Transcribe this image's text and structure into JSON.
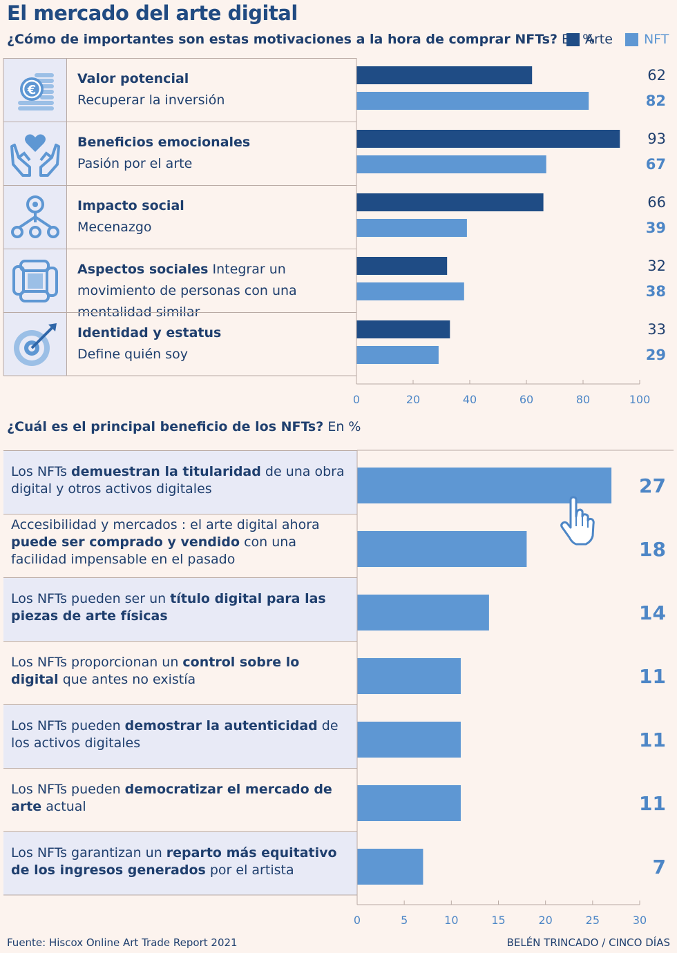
{
  "title": "El mercado del arte digital",
  "chart1_subtitle_bold": "¿Cómo de importantes son estas motivaciones a la hora de comprar NFTs?",
  "chart1_subtitle_unit": "En %",
  "chart2_subtitle_bold": "¿Cuál es el principal beneficio de los NFTs?",
  "chart2_subtitle_unit": "En %",
  "legend": [
    {
      "label": "Arte",
      "color": "#1f4c85"
    },
    {
      "label": "NFT",
      "color": "#5e97d3"
    }
  ],
  "icons": [
    "euro-coins-icon",
    "heart-hands-icon",
    "network-icon",
    "joined-hands-icon",
    "target-arrow-icon"
  ],
  "chart_data": [
    {
      "type": "bar",
      "orientation": "horizontal",
      "title": "¿Cómo de importantes son estas motivaciones a la hora de comprar NFTs? En %",
      "categories": [
        {
          "bold": "Valor potencial",
          "text": "Recuperar la inversión"
        },
        {
          "bold": "Beneficios emocionales",
          "text": "Pasión por el arte"
        },
        {
          "bold": "Impacto social",
          "text": "Mecenazgo"
        },
        {
          "bold": "Aspectos sociales",
          "text": "Integrar un movimiento de personas con una mentalidad similar"
        },
        {
          "bold": "Identidad y estatus",
          "text": "Define quién soy"
        }
      ],
      "series": [
        {
          "name": "Arte",
          "values": [
            62,
            93,
            66,
            32,
            33
          ]
        },
        {
          "name": "NFT",
          "values": [
            82,
            67,
            39,
            38,
            29
          ]
        }
      ],
      "xlim": [
        0,
        100
      ],
      "xticks": [
        0,
        20,
        40,
        60,
        80,
        100
      ],
      "legend_position": "top-right",
      "grid": false
    },
    {
      "type": "bar",
      "orientation": "horizontal",
      "title": "¿Cuál es el principal beneficio de los NFTs? En %",
      "categories": [
        [
          {
            "t": "Los NFTs ",
            "b": false
          },
          {
            "t": "demuestran la titularidad",
            "b": true
          },
          {
            "t": " de una obra digital y otros activos digitales",
            "b": false
          }
        ],
        [
          {
            "t": "Accesibilidad y mercados : el arte digital ahora ",
            "b": false
          },
          {
            "t": "puede ser comprado y vendido",
            "b": true
          },
          {
            "t": " con una facilidad impensable en el pasado",
            "b": false
          }
        ],
        [
          {
            "t": "Los NFTs pueden ser un ",
            "b": false
          },
          {
            "t": "título digital para las piezas de arte físicas",
            "b": true
          }
        ],
        [
          {
            "t": "Los NFTs proporcionan un ",
            "b": false
          },
          {
            "t": "control sobre lo digital",
            "b": true
          },
          {
            "t": " que antes no existía",
            "b": false
          }
        ],
        [
          {
            "t": "Los NFTs pueden ",
            "b": false
          },
          {
            "t": "demostrar la autenticidad",
            "b": true
          },
          {
            "t": " de los activos digitales",
            "b": false
          }
        ],
        [
          {
            "t": "Los NFTs pueden ",
            "b": false
          },
          {
            "t": "democratizar el mercado de arte",
            "b": true
          },
          {
            "t": " actual",
            "b": false
          }
        ],
        [
          {
            "t": "Los NFTs garantizan un ",
            "b": false
          },
          {
            "t": "reparto más equitativo de los ingresos generados",
            "b": true
          },
          {
            "t": " por el artista",
            "b": false
          }
        ]
      ],
      "values": [
        27,
        18,
        14,
        11,
        11,
        11,
        7
      ],
      "xlim": [
        0,
        30
      ],
      "xticks": [
        0,
        5,
        10,
        15,
        20,
        25,
        30
      ],
      "grid": false
    }
  ],
  "footer": {
    "source": "Fuente: Hiscox Online Art Trade Report 2021",
    "credit": "BELÉN TRINCADO / CINCO DÍAS"
  }
}
